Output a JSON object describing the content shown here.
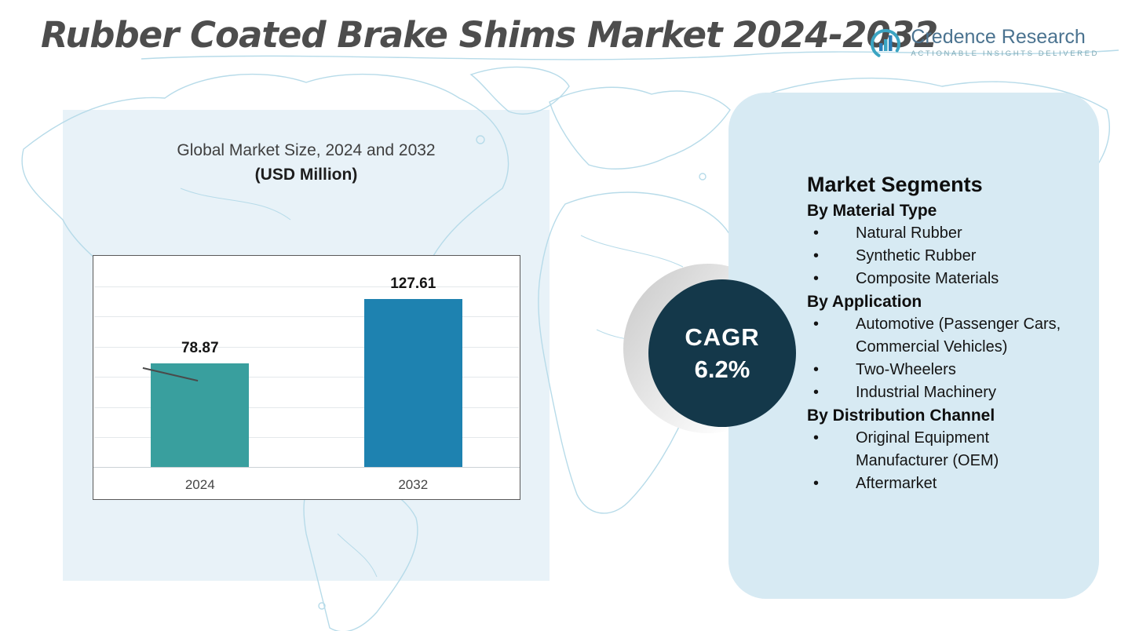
{
  "title": "Rubber Coated Brake Shims Market 2024-2032",
  "logo": {
    "name": "Credence Research",
    "tagline": "Actionable Insights Delivered"
  },
  "chart_panel": {
    "title": "Global Market Size, 2024 and 2032",
    "subtitle": "(USD Million)"
  },
  "chart_data": {
    "type": "bar",
    "title": "Global Market Size, 2024 and 2032 (USD Million)",
    "categories": [
      "2024",
      "2032"
    ],
    "values": [
      78.87,
      127.61
    ],
    "value_labels": [
      "78.87",
      "127.61"
    ],
    "bar_colors": [
      "#399f9e",
      "#1e82b0"
    ],
    "ylim": [
      0,
      140
    ],
    "grid": true,
    "legend": "none",
    "unit": "USD Million"
  },
  "cagr": {
    "label": "CAGR",
    "value": "6.2%"
  },
  "segments": {
    "title": "Market Segments",
    "groups": [
      {
        "heading": "By Material Type",
        "items": [
          "Natural Rubber",
          "Synthetic Rubber",
          "Composite Materials"
        ]
      },
      {
        "heading": "By Application",
        "items": [
          "Automotive (Passenger Cars, Commercial Vehicles)",
          "Two-Wheelers",
          "Industrial Machinery"
        ]
      },
      {
        "heading": "By Distribution Channel",
        "items": [
          "Original Equipment Manufacturer (OEM)",
          "Aftermarket"
        ]
      }
    ]
  },
  "colors": {
    "bar_2024": "#399f9e",
    "bar_2032": "#1e82b0",
    "cagr_circle": "#14384a",
    "panel_left_bg": "#e8f2f8",
    "panel_right_bg": "#d7eaf3",
    "map_line": "#b7dbe9",
    "title_text": "#4d4d4d"
  }
}
